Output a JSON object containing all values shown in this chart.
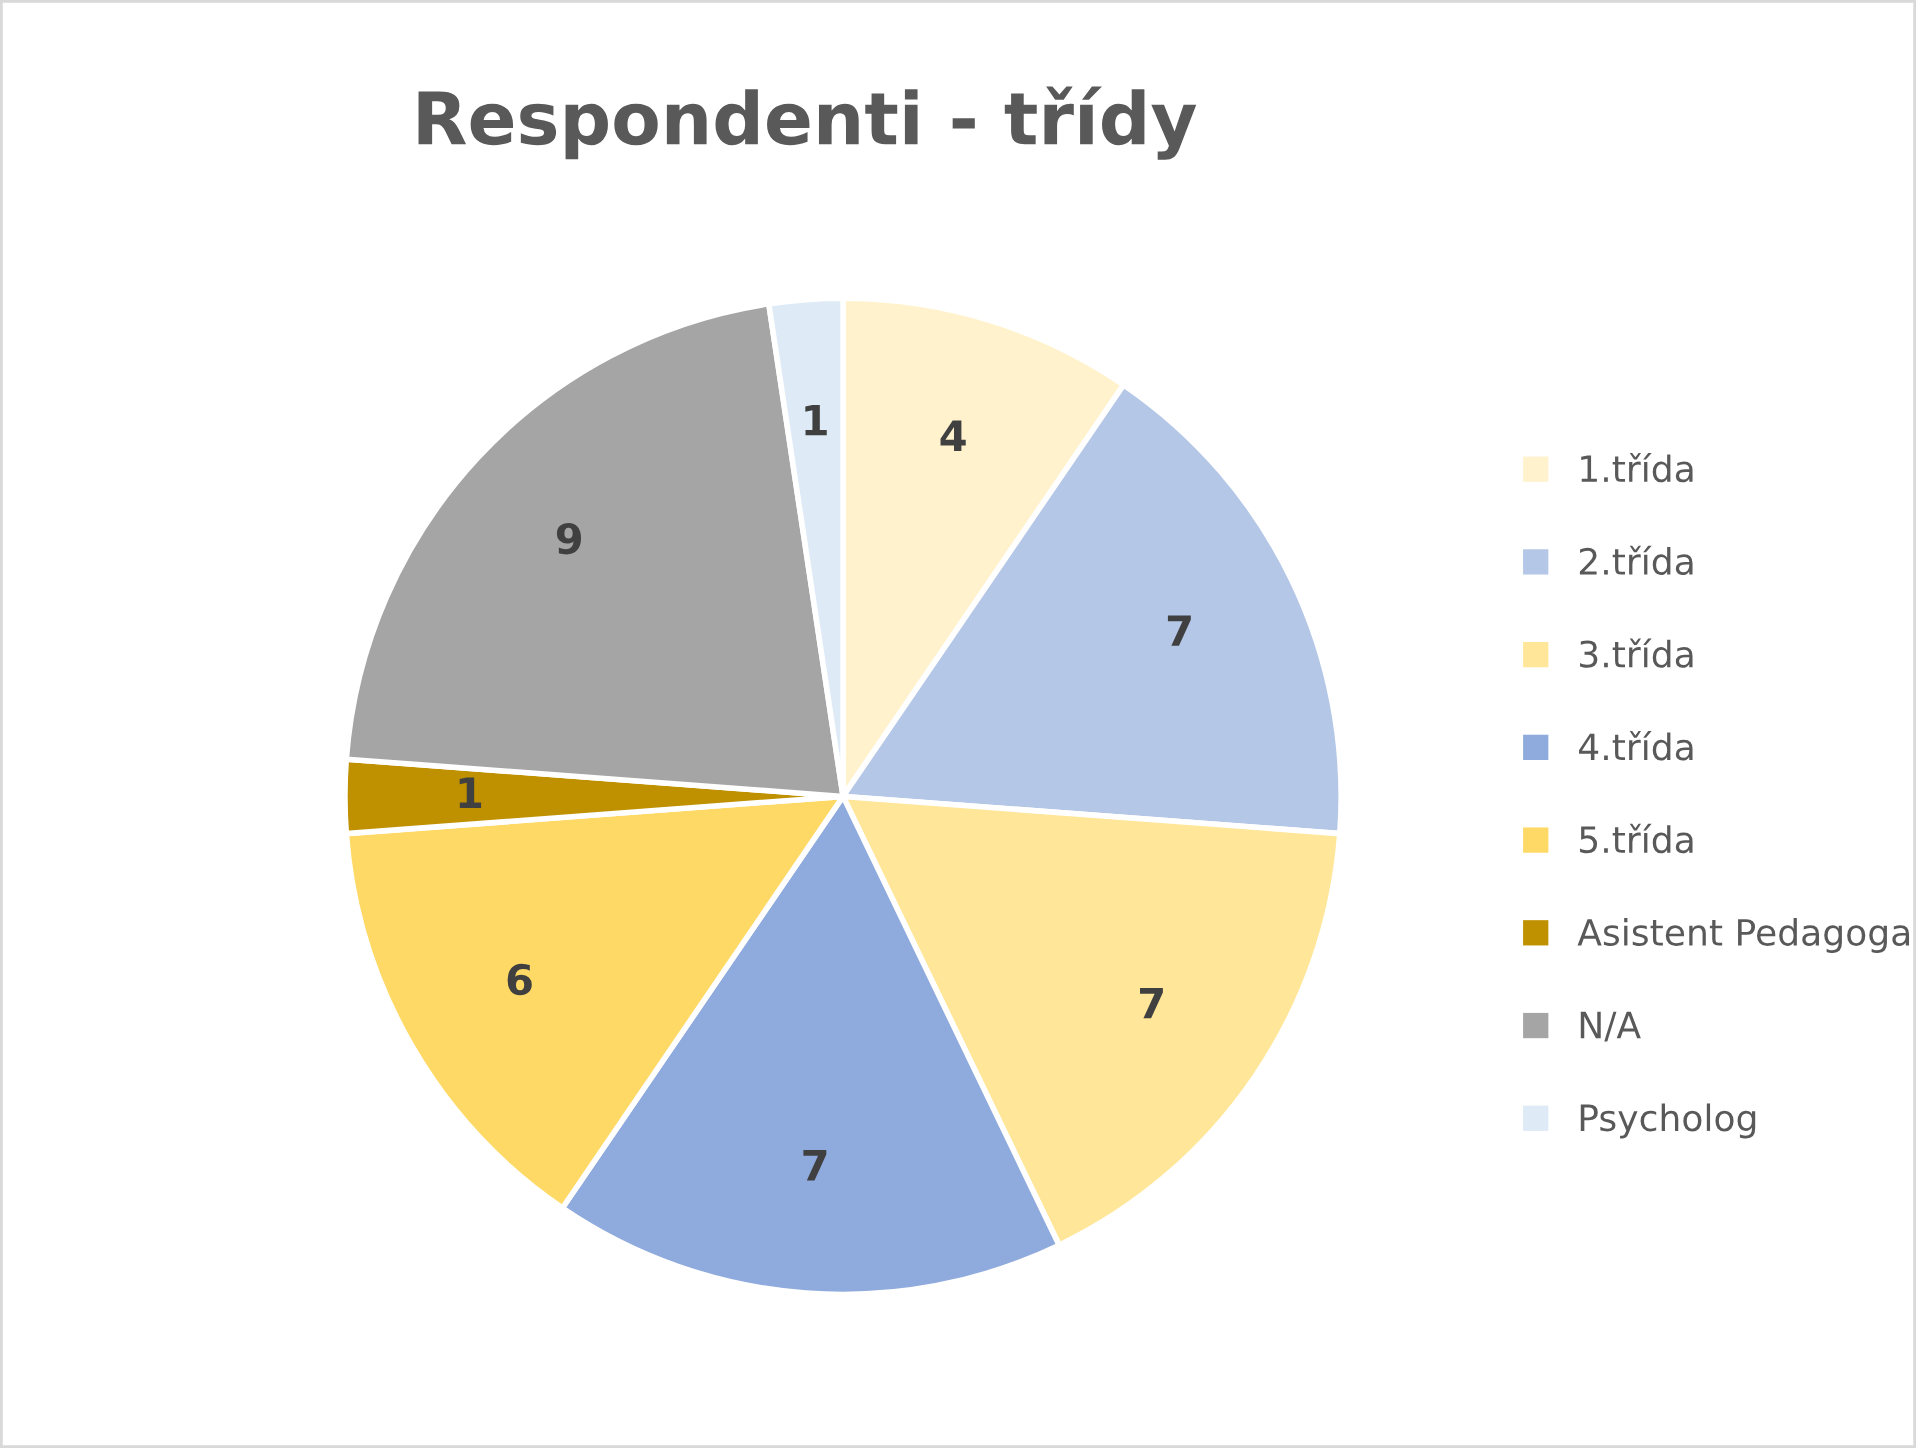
{
  "chart_data": {
    "type": "pie",
    "title": "Respondenti - třídy",
    "categories": [
      "1.třída",
      "2.třída",
      "3.třída",
      "4.třída",
      "5.třída",
      "Asistent Pedagoga",
      "N/A",
      "Psycholog"
    ],
    "values": [
      4,
      7,
      7,
      7,
      6,
      1,
      9,
      1
    ],
    "colors": [
      "#fff2cc",
      "#b4c7e7",
      "#ffe699",
      "#8faadc",
      "#ffd966",
      "#bf9000",
      "#a5a5a5",
      "#deebf7"
    ],
    "data_labels": true,
    "legend": "right"
  }
}
